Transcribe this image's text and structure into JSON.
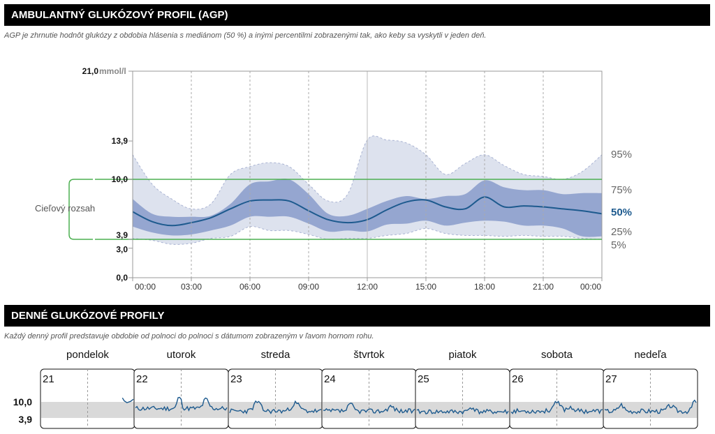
{
  "agp": {
    "title": "AMBULANTNÝ GLUKÓZOVÝ PROFIL (AGP)",
    "subtitle": "AGP je zhrnutie hodnôt glukózy z obdobia hlásenia s mediánom (50 %) a inými percentilmi zobrazenými tak, ako keby sa vyskytli v jeden deň.",
    "target_range_label": "Cieľový rozsah",
    "target_low": "3,9",
    "target_high": "10,0",
    "y_unit": "mmol/l",
    "colors": {
      "outer_band": "#dde2ee",
      "inner_band": "#95a6d0",
      "median": "#1d5a8e",
      "target": "#4caf50"
    }
  },
  "daily": {
    "title": "DENNÉ GLUKÓZOVÉ PROFILY",
    "subtitle": "Každý denný profil predstavuje obdobie od polnoci do polnoci s dátumom zobrazeným v ľavom hornom rohu.",
    "y_labels": [
      "10,0",
      "3,9"
    ],
    "days": [
      {
        "name": "pondelok",
        "date": "21"
      },
      {
        "name": "utorok",
        "date": "22"
      },
      {
        "name": "streda",
        "date": "23"
      },
      {
        "name": "štvrtok",
        "date": "24"
      },
      {
        "name": "piatok",
        "date": "25"
      },
      {
        "name": "sobota",
        "date": "26"
      },
      {
        "name": "nedeľa",
        "date": "27"
      }
    ]
  },
  "chart_data": {
    "type": "area",
    "title": "AMBULANTNÝ GLUKÓZOVÝ PROFIL (AGP)",
    "ylabel": "mmol/l",
    "ylim": [
      0,
      21
    ],
    "y_ticks": [
      {
        "value": 0,
        "label": "0,0"
      },
      {
        "value": 3,
        "label": "3,0"
      },
      {
        "value": 3.9,
        "label": "3,9"
      },
      {
        "value": 10,
        "label": "10,0"
      },
      {
        "value": 13.9,
        "label": "13,9"
      },
      {
        "value": 21,
        "label": "21,0"
      }
    ],
    "x_ticks": [
      "00:00",
      "03:00",
      "06:00",
      "09:00",
      "12:00",
      "15:00",
      "18:00",
      "21:00",
      "00:00"
    ],
    "x_hours": [
      0,
      1,
      2,
      3,
      4,
      5,
      6,
      7,
      8,
      9,
      10,
      11,
      12,
      13,
      14,
      15,
      16,
      17,
      18,
      19,
      20,
      21,
      22,
      23,
      24
    ],
    "series": [
      {
        "name": "95%",
        "values": [
          12.5,
          9.5,
          8.0,
          7.0,
          7.5,
          10.5,
          11.3,
          11.7,
          11.3,
          9.5,
          7.8,
          8.5,
          14.0,
          14.0,
          13.7,
          12.5,
          10.5,
          11.6,
          12.5,
          11.4,
          10.5,
          10.3,
          10.0,
          10.8,
          12.5
        ]
      },
      {
        "name": "75%",
        "values": [
          8.0,
          6.5,
          6.2,
          6.2,
          6.3,
          7.5,
          9.5,
          9.8,
          10.0,
          8.5,
          6.5,
          6.3,
          7.0,
          7.8,
          8.3,
          8.0,
          8.3,
          8.5,
          9.9,
          9.2,
          8.9,
          8.9,
          8.5,
          8.6,
          8.6
        ]
      },
      {
        "name": "50%",
        "values": [
          6.7,
          5.7,
          5.3,
          5.6,
          6.1,
          7.0,
          7.8,
          7.9,
          7.8,
          6.8,
          5.9,
          5.6,
          5.9,
          6.9,
          7.7,
          7.9,
          7.2,
          7.0,
          8.2,
          7.2,
          7.3,
          7.2,
          7.0,
          6.8,
          6.5
        ]
      },
      {
        "name": "25%",
        "values": [
          5.2,
          4.6,
          4.3,
          4.4,
          4.8,
          5.3,
          6.2,
          6.2,
          6.2,
          5.5,
          4.7,
          4.8,
          4.7,
          5.4,
          5.5,
          5.8,
          5.3,
          5.6,
          5.8,
          5.7,
          5.3,
          5.3,
          5.0,
          4.2,
          4.2
        ]
      },
      {
        "name": "5%",
        "values": [
          4.0,
          3.8,
          3.4,
          3.5,
          4.0,
          4.2,
          5.2,
          4.8,
          4.8,
          4.4,
          3.9,
          4.0,
          4.0,
          4.3,
          4.5,
          5.0,
          4.5,
          4.3,
          4.3,
          4.2,
          4.3,
          4.2,
          4.2,
          4.0,
          3.9
        ]
      }
    ],
    "grid": "vertical-dashed",
    "legend": "right"
  }
}
